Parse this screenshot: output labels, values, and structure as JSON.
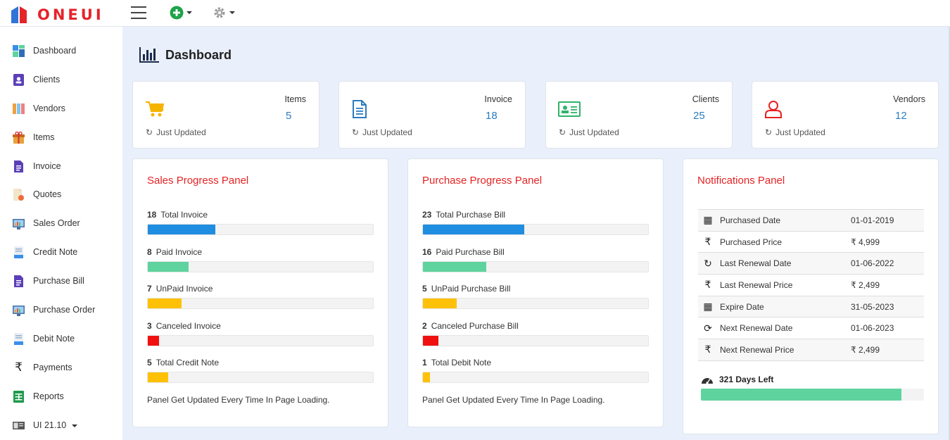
{
  "app": {
    "logo_text": "ONEUI",
    "colors": {
      "accent": "#e52222",
      "link": "#2b7bbf",
      "blue": "#1f8de0",
      "green": "#5fd39e",
      "yellow": "#ffc107",
      "red": "#f01010"
    }
  },
  "topbar": {
    "menu_icon": "hamburger-icon",
    "add_icon": "plus-circle-icon",
    "settings_icon": "gear-icon"
  },
  "sidebar": {
    "items": [
      {
        "label": "Dashboard",
        "icon": "dashboard-icon"
      },
      {
        "label": "Clients",
        "icon": "client-icon"
      },
      {
        "label": "Vendors",
        "icon": "vendors-icon"
      },
      {
        "label": "Items",
        "icon": "gift-icon"
      },
      {
        "label": "Invoice",
        "icon": "invoice-icon"
      },
      {
        "label": "Quotes",
        "icon": "quotes-icon"
      },
      {
        "label": "Sales Order",
        "icon": "sales-order-icon"
      },
      {
        "label": "Credit Note",
        "icon": "credit-note-icon"
      },
      {
        "label": "Purchase Bill",
        "icon": "purchase-bill-icon"
      },
      {
        "label": "Purchase Order",
        "icon": "purchase-order-icon"
      },
      {
        "label": "Debit Note",
        "icon": "debit-note-icon"
      },
      {
        "label": "Payments",
        "icon": "rupee-icon"
      },
      {
        "label": "Reports",
        "icon": "reports-icon"
      },
      {
        "label": "UI 21.10",
        "icon": "version-icon"
      }
    ]
  },
  "page": {
    "title": "Dashboard",
    "title_icon": "bar-chart-icon"
  },
  "stats": [
    {
      "label": "Items",
      "value": "5",
      "footer": "Just Updated",
      "icon": "cart-icon"
    },
    {
      "label": "Invoice",
      "value": "18",
      "footer": "Just Updated",
      "icon": "document-icon"
    },
    {
      "label": "Clients",
      "value": "25",
      "footer": "Just Updated",
      "icon": "id-card-icon"
    },
    {
      "label": "Vendors",
      "value": "12",
      "footer": "Just Updated",
      "icon": "user-icon"
    }
  ],
  "sales_panel": {
    "title": "Sales Progress Panel",
    "rows": [
      {
        "count": "18",
        "label": "Total Invoice",
        "fraction": 0.3,
        "color": "#1f8de0"
      },
      {
        "count": "8",
        "label": "Paid Invoice",
        "fraction": 0.18,
        "color": "#5fd39e"
      },
      {
        "count": "7",
        "label": "UnPaid Invoice",
        "fraction": 0.15,
        "color": "#ffc107"
      },
      {
        "count": "3",
        "label": "Canceled Invoice",
        "fraction": 0.05,
        "color": "#f01010"
      },
      {
        "count": "5",
        "label": "Total Credit Note",
        "fraction": 0.09,
        "color": "#ffc107"
      }
    ],
    "note": "Panel Get Updated Every Time In Page Loading."
  },
  "purchase_panel": {
    "title": "Purchase Progress Panel",
    "rows": [
      {
        "count": "23",
        "label": "Total Purchase Bill",
        "fraction": 0.45,
        "color": "#1f8de0"
      },
      {
        "count": "16",
        "label": "Paid Purchase Bill",
        "fraction": 0.28,
        "color": "#5fd39e"
      },
      {
        "count": "5",
        "label": "UnPaid Purchase Bill",
        "fraction": 0.15,
        "color": "#ffc107"
      },
      {
        "count": "2",
        "label": "Canceled Purchase Bill",
        "fraction": 0.07,
        "color": "#f01010"
      },
      {
        "count": "1",
        "label": "Total Debit Note",
        "fraction": 0.03,
        "color": "#ffc107"
      }
    ],
    "note": "Panel Get Updated Every Time In Page Loading."
  },
  "notifications": {
    "title": "Notifications Panel",
    "rows": [
      {
        "icon": "calendar-icon",
        "glyph": "▦",
        "label": "Purchased Date",
        "value": "01-01-2019"
      },
      {
        "icon": "rupee-icon",
        "glyph": "₹",
        "label": "Purchased Price",
        "value": "₹ 4,999"
      },
      {
        "icon": "refresh-icon",
        "glyph": "↻",
        "label": "Last Renewal Date",
        "value": "01-06-2022"
      },
      {
        "icon": "rupee-icon",
        "glyph": "₹",
        "label": "Last Renewal Price",
        "value": "₹ 2,499"
      },
      {
        "icon": "calendar-icon",
        "glyph": "▦",
        "label": "Expire Date",
        "value": "31-05-2023"
      },
      {
        "icon": "sync-icon",
        "glyph": "⟳",
        "label": "Next Renewal Date",
        "value": "01-06-2023"
      },
      {
        "icon": "rupee-icon",
        "glyph": "₹",
        "label": "Next Renewal Price",
        "value": "₹ 2,499"
      }
    ],
    "days_left": "321 Days Left",
    "days_fraction": 0.9
  }
}
